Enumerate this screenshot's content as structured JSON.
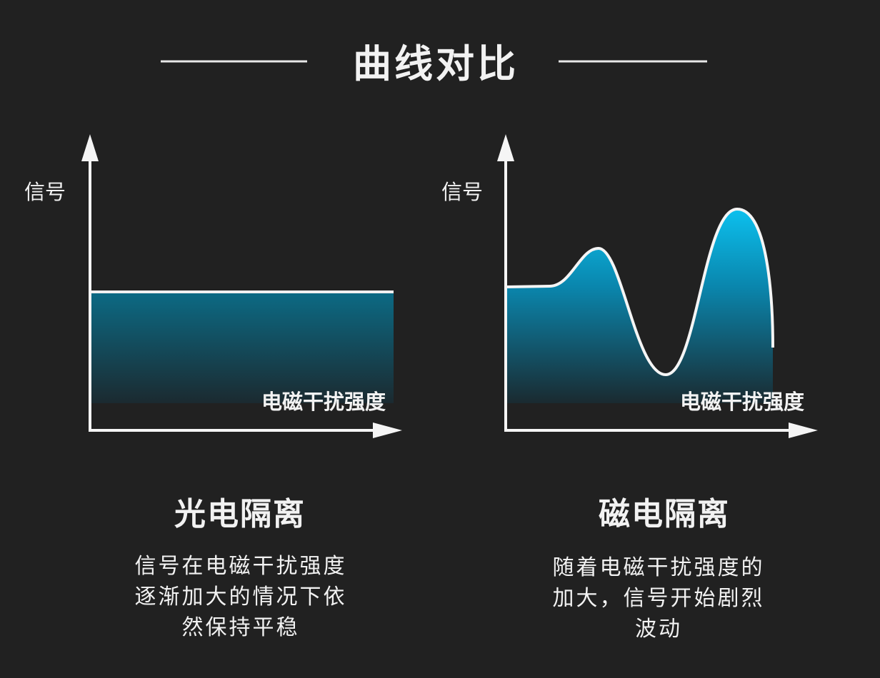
{
  "title": "曲线对比",
  "colors": {
    "background": "#212121",
    "fill_top": "#0aa6d6",
    "fill_bottom": "#1a2a30",
    "line": "#f5f5f5"
  },
  "panels": [
    {
      "y_label": "信号",
      "x_label": "电磁干扰强度",
      "name": "光电隔离",
      "curve": "flat",
      "description": [
        "信号在电磁干扰强度",
        "逐渐加大的情况下依",
        "然保持平稳"
      ]
    },
    {
      "y_label": "信号",
      "x_label": "电磁干扰强度",
      "name": "磁电隔离",
      "curve": "fluctuating",
      "description": [
        "随着电磁干扰强度的",
        "加大，信号开始剧烈",
        "波动"
      ]
    }
  ]
}
